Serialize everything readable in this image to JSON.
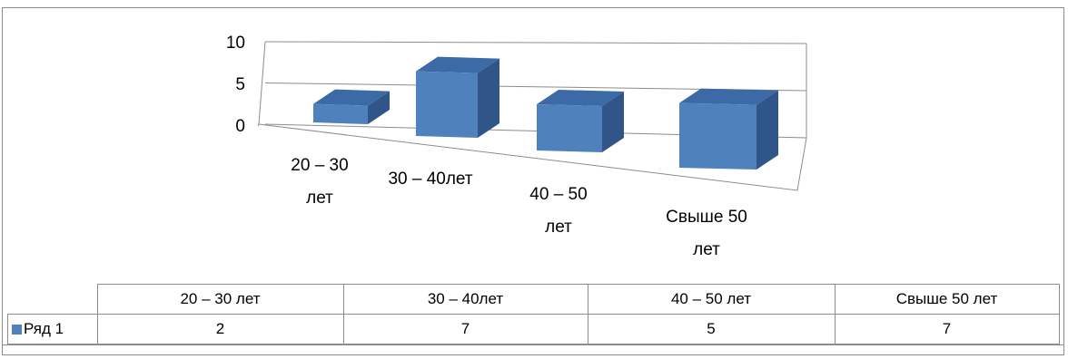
{
  "chart_data": {
    "type": "bar",
    "style": "3d-column",
    "categories": [
      "20 – 30 лет",
      "30 – 40лет",
      "40 – 50 лет",
      "Свыше 50 лет"
    ],
    "axis_category_labels": [
      [
        "20 – 30",
        "лет"
      ],
      [
        "30 – 40лет"
      ],
      [
        "40 – 50",
        "лет"
      ],
      [
        "Свыше 50",
        "лет"
      ]
    ],
    "series": [
      {
        "name": "Ряд 1",
        "values": [
          2,
          7,
          5,
          7
        ],
        "color": "#4f81bd"
      }
    ],
    "yticks": [
      "10",
      "5",
      "0"
    ],
    "ylim": [
      0,
      10
    ],
    "grid": true,
    "legend": "data-table",
    "title": "",
    "xlabel": "",
    "ylabel": ""
  },
  "table": {
    "headers": [
      "20 – 30 лет",
      "30 – 40лет",
      "40 – 50 лет",
      "Свыше 50 лет"
    ],
    "rows": [
      {
        "label": "Ряд 1",
        "values": [
          "2",
          "7",
          "5",
          "7"
        ]
      }
    ]
  },
  "colors": {
    "bar_front": "#4f81bd",
    "bar_side": "#2f5589",
    "bar_top": "#3c6aa6",
    "gridline": "#8c8c8c"
  }
}
